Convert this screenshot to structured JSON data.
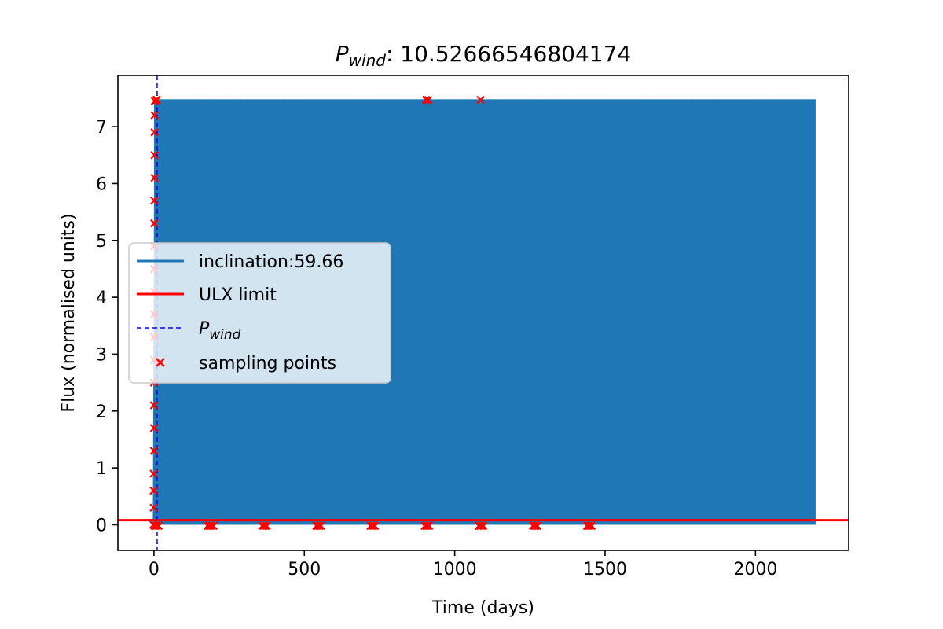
{
  "chart_data": {
    "type": "line",
    "title": {
      "symbol": "P",
      "subscript": "wind",
      "separator": ": ",
      "value": "10.52666546804174"
    },
    "xlabel": "Time (days)",
    "ylabel": "Flux (normalised units)",
    "xlim": [
      -120,
      2310
    ],
    "ylim": [
      -0.45,
      7.9
    ],
    "x_ticks": [
      0,
      500,
      1000,
      1500,
      2000
    ],
    "y_ticks": [
      0,
      1,
      2,
      3,
      4,
      5,
      6,
      7
    ],
    "grid": false,
    "legend_position": "center-left",
    "series": [
      {
        "name": "inclination:59.66",
        "kind": "line",
        "color": "#1f77b4",
        "x_range": [
          0,
          2200
        ],
        "period": 10.52666546804174,
        "y_min": 0.0,
        "y_max": 7.48
      },
      {
        "name": "ULX limit",
        "kind": "hline",
        "color": "#ff0000",
        "y": 0.08
      },
      {
        "name": "P_wind",
        "kind": "vline",
        "color": "#0000ff",
        "style": "dashed",
        "x": 10.52666546804174
      },
      {
        "name": "sampling points",
        "kind": "scatter",
        "marker": "x",
        "color": "#ff0000",
        "points": [
          [
            -2,
            0.0
          ],
          [
            -1,
            0.3
          ],
          [
            -1,
            0.6
          ],
          [
            -1,
            0.9
          ],
          [
            0,
            1.3
          ],
          [
            0,
            1.7
          ],
          [
            0,
            2.1
          ],
          [
            0,
            2.5
          ],
          [
            0,
            2.9
          ],
          [
            0,
            3.3
          ],
          [
            1,
            3.7
          ],
          [
            1,
            4.1
          ],
          [
            1,
            4.5
          ],
          [
            1,
            4.9
          ],
          [
            1,
            5.3
          ],
          [
            1,
            5.7
          ],
          [
            2,
            6.1
          ],
          [
            2,
            6.5
          ],
          [
            2,
            6.9
          ],
          [
            2,
            7.2
          ],
          [
            3,
            7.45
          ],
          [
            8,
            7.47
          ],
          [
            10,
            7.47
          ],
          [
            2,
            -0.02
          ],
          [
            6,
            -0.02
          ],
          [
            10,
            -0.02
          ],
          [
            16,
            -0.02
          ],
          [
            178,
            -0.02
          ],
          [
            183,
            -0.02
          ],
          [
            188,
            -0.02
          ],
          [
            193,
            -0.02
          ],
          [
            198,
            -0.02
          ],
          [
            360,
            -0.02
          ],
          [
            365,
            -0.02
          ],
          [
            370,
            -0.02
          ],
          [
            375,
            -0.02
          ],
          [
            540,
            -0.02
          ],
          [
            545,
            -0.02
          ],
          [
            550,
            -0.02
          ],
          [
            555,
            -0.02
          ],
          [
            720,
            -0.02
          ],
          [
            725,
            -0.02
          ],
          [
            730,
            -0.02
          ],
          [
            735,
            -0.02
          ],
          [
            900,
            -0.02
          ],
          [
            905,
            -0.02
          ],
          [
            910,
            -0.02
          ],
          [
            915,
            -0.02
          ],
          [
            905,
            7.47
          ],
          [
            912,
            7.47
          ],
          [
            1080,
            -0.02
          ],
          [
            1085,
            -0.02
          ],
          [
            1090,
            -0.02
          ],
          [
            1095,
            -0.02
          ],
          [
            1086,
            7.47
          ],
          [
            1260,
            -0.02
          ],
          [
            1265,
            -0.02
          ],
          [
            1270,
            -0.02
          ],
          [
            1275,
            -0.02
          ],
          [
            1440,
            -0.02
          ],
          [
            1445,
            -0.02
          ],
          [
            1450,
            -0.02
          ],
          [
            1455,
            -0.02
          ]
        ]
      }
    ],
    "legend": [
      {
        "label": "inclination:59.66",
        "kind": "line"
      },
      {
        "label": "ULX limit",
        "kind": "line"
      },
      {
        "symbol": "P",
        "subscript": "wind",
        "kind": "dashed"
      },
      {
        "label": "sampling points",
        "kind": "marker"
      }
    ]
  }
}
